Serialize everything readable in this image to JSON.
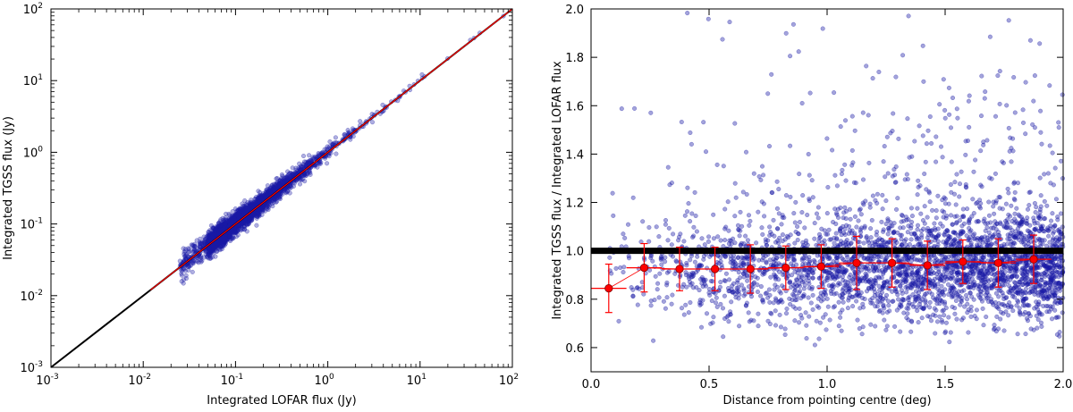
{
  "chart_data": [
    {
      "type": "scatter",
      "xlabel": "Integrated LOFAR flux (Jy)",
      "ylabel": "Integrated TGSS flux (Jy)",
      "xscale": "log",
      "yscale": "log",
      "xlim": [
        0.001,
        100
      ],
      "ylim": [
        0.001,
        100
      ],
      "ticks": [
        {
          "base": "10",
          "exp": "-3",
          "value": 0.001
        },
        {
          "base": "10",
          "exp": "-2",
          "value": 0.01
        },
        {
          "base": "10",
          "exp": "-1",
          "value": 0.1
        },
        {
          "base": "10",
          "exp": "0",
          "value": 1
        },
        {
          "base": "10",
          "exp": "1",
          "value": 10
        },
        {
          "base": "10",
          "exp": "2",
          "value": 100
        }
      ],
      "point_color": "#1a1aa6",
      "points_approx": {
        "x_range": [
          0.02,
          80
        ],
        "ratio_median": 1.0,
        "ratio_spread": 0.3
      },
      "lines": [
        {
          "description": "one-to-one",
          "color": "#000000",
          "x": [
            0.001,
            100
          ],
          "y": [
            0.001,
            100
          ]
        },
        {
          "description": "fit",
          "color": "#ff0000",
          "x": [
            0.012,
            100
          ],
          "y": [
            0.012,
            100
          ]
        }
      ],
      "grid": false
    },
    {
      "type": "scatter",
      "xlabel": "Distance from pointing centre (deg)",
      "ylabel": "Integrated TGSS flux / Integrated LOFAR flux",
      "xlim": [
        0.0,
        2.0
      ],
      "ylim": [
        0.5,
        2.0
      ],
      "xticks": [
        "0.0",
        "0.5",
        "1.0",
        "1.5",
        "2.0"
      ],
      "yticks": [
        "0.6",
        "0.8",
        "1.0",
        "1.2",
        "1.4",
        "1.6",
        "1.8",
        "2.0"
      ],
      "point_color": "#1a1aa6",
      "reference_line": {
        "y": 1.0,
        "color": "#000000"
      },
      "binned_means": {
        "color": "#ff0000",
        "x": [
          0.075,
          0.225,
          0.375,
          0.525,
          0.675,
          0.825,
          0.975,
          1.125,
          1.275,
          1.425,
          1.575,
          1.725,
          1.875
        ],
        "y": [
          0.845,
          0.93,
          0.925,
          0.925,
          0.925,
          0.93,
          0.935,
          0.95,
          0.95,
          0.94,
          0.955,
          0.95,
          0.965
        ],
        "y_err": [
          0.1,
          0.1,
          0.09,
          0.09,
          0.1,
          0.09,
          0.09,
          0.11,
          0.1,
          0.1,
          0.09,
          0.1,
          0.1
        ],
        "x_err": 0.075
      },
      "grid": false
    }
  ]
}
